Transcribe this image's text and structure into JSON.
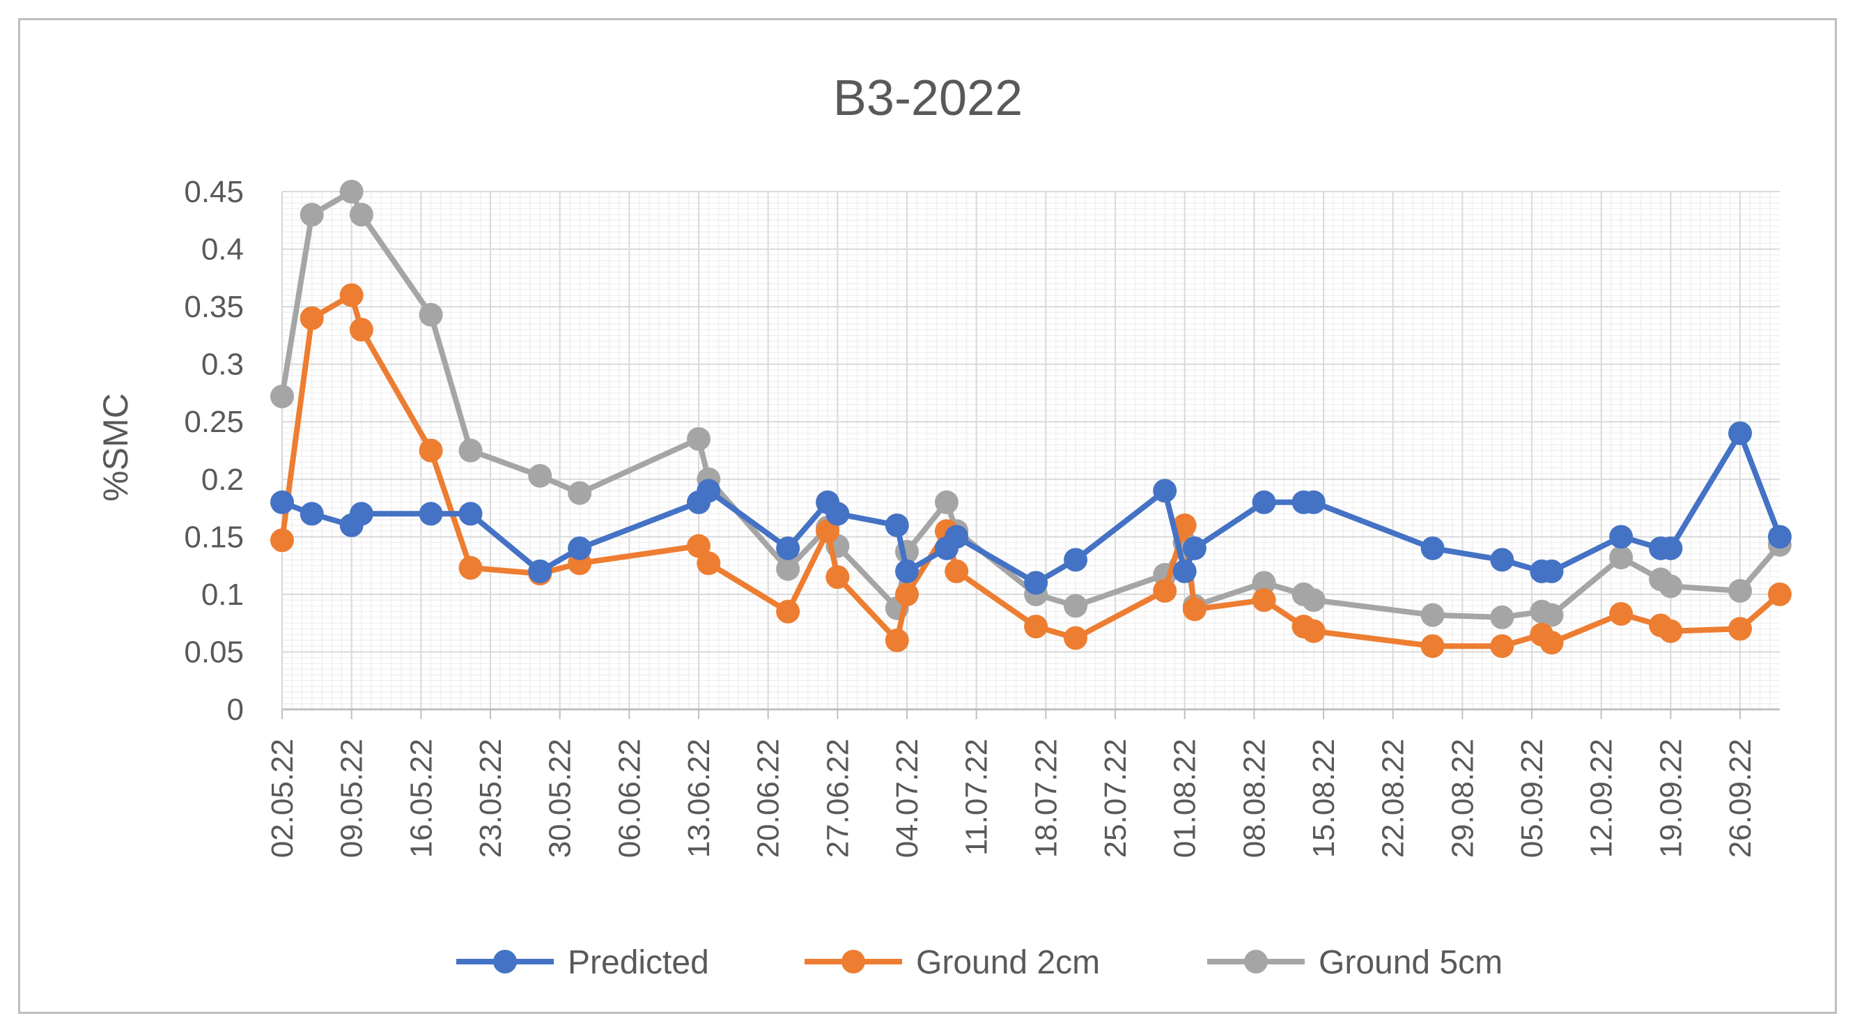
{
  "chart_data": {
    "type": "line",
    "title": "B3-2022",
    "xlabel": "",
    "ylabel": "%SMC",
    "ylim": [
      0,
      0.45
    ],
    "yticks": [
      0,
      0.05,
      0.1,
      0.15,
      0.2,
      0.25,
      0.3,
      0.35,
      0.4,
      0.45
    ],
    "ytick_labels": [
      "0",
      "0.05",
      "0.1",
      "0.15",
      "0.2",
      "0.25",
      "0.3",
      "0.35",
      "0.4",
      "0.45"
    ],
    "xlim": [
      "2022-05-02",
      "2022-09-30"
    ],
    "xtick_dates": [
      "2022-05-02",
      "2022-05-09",
      "2022-05-16",
      "2022-05-23",
      "2022-05-30",
      "2022-06-06",
      "2022-06-13",
      "2022-06-20",
      "2022-06-27",
      "2022-07-04",
      "2022-07-11",
      "2022-07-18",
      "2022-07-25",
      "2022-08-01",
      "2022-08-08",
      "2022-08-15",
      "2022-08-22",
      "2022-08-29",
      "2022-09-05",
      "2022-09-12",
      "2022-09-19",
      "2022-09-26"
    ],
    "xtick_labels": [
      "02.05.22",
      "09.05.22",
      "16.05.22",
      "23.05.22",
      "30.05.22",
      "06.06.22",
      "13.06.22",
      "20.06.22",
      "27.06.22",
      "04.07.22",
      "11.07.22",
      "18.07.22",
      "25.07.22",
      "01.08.22",
      "08.08.22",
      "15.08.22",
      "22.08.22",
      "29.08.22",
      "05.09.22",
      "12.09.22",
      "19.09.22",
      "26.09.22"
    ],
    "grid": true,
    "legend_position": "bottom",
    "x": [
      "2022-05-02",
      "2022-05-05",
      "2022-05-09",
      "2022-05-10",
      "2022-05-17",
      "2022-05-21",
      "2022-05-28",
      "2022-06-01",
      "2022-06-13",
      "2022-06-14",
      "2022-06-22",
      "2022-06-26",
      "2022-06-27",
      "2022-07-03",
      "2022-07-04",
      "2022-07-08",
      "2022-07-09",
      "2022-07-17",
      "2022-07-21",
      "2022-07-30",
      "2022-08-01",
      "2022-08-02",
      "2022-08-09",
      "2022-08-13",
      "2022-08-14",
      "2022-08-26",
      "2022-09-02",
      "2022-09-06",
      "2022-09-07",
      "2022-09-14",
      "2022-09-18",
      "2022-09-19",
      "2022-09-26",
      "2022-09-30"
    ],
    "series": [
      {
        "name": "Predicted",
        "color": "#4472c4",
        "values": [
          0.18,
          0.17,
          0.16,
          0.17,
          0.17,
          0.17,
          0.12,
          0.14,
          0.18,
          0.19,
          0.14,
          0.18,
          0.17,
          0.16,
          0.12,
          0.14,
          0.15,
          0.11,
          0.13,
          0.19,
          0.12,
          0.14,
          0.18,
          0.18,
          0.18,
          0.14,
          0.13,
          0.12,
          0.12,
          0.15,
          0.14,
          0.14,
          0.24,
          0.15
        ]
      },
      {
        "name": "Ground 2cm",
        "color": "#ed7d31",
        "values": [
          0.147,
          0.34,
          0.36,
          0.33,
          0.225,
          0.123,
          0.118,
          0.127,
          0.142,
          0.127,
          0.085,
          0.155,
          0.115,
          0.06,
          0.1,
          0.155,
          0.12,
          0.072,
          0.062,
          0.103,
          0.16,
          0.087,
          0.095,
          0.072,
          0.068,
          0.055,
          0.055,
          0.065,
          0.058,
          0.083,
          0.073,
          0.068,
          0.07,
          0.1
        ]
      },
      {
        "name": "Ground 5cm",
        "color": "#a5a5a5",
        "values": [
          0.272,
          0.43,
          0.45,
          0.43,
          0.343,
          0.225,
          0.203,
          0.188,
          0.235,
          0.2,
          0.122,
          0.158,
          0.142,
          0.088,
          0.137,
          0.18,
          0.155,
          0.1,
          0.09,
          0.117,
          0.145,
          0.09,
          0.11,
          0.1,
          0.095,
          0.082,
          0.08,
          0.085,
          0.082,
          0.132,
          0.113,
          0.107,
          0.103,
          0.143
        ]
      }
    ]
  }
}
